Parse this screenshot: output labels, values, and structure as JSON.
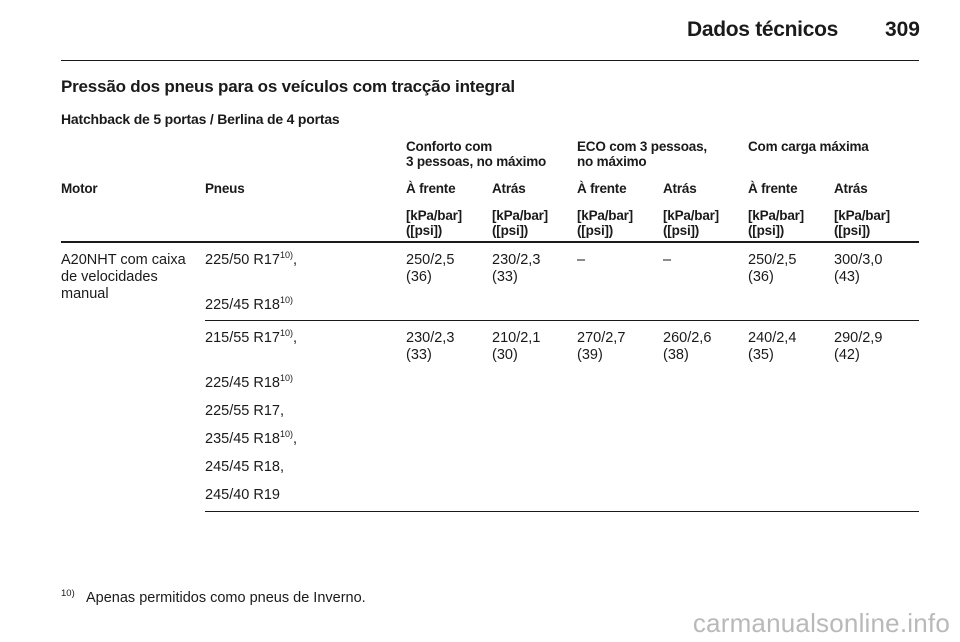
{
  "header": {
    "title": "Dados técnicos",
    "page": "309"
  },
  "section_title": "Pressão dos pneus para os veículos com tracção integral",
  "subtitle": "Hatchback de 5 portas / Berlina de 4 portas",
  "table": {
    "groups": [
      {
        "line1": "Conforto com",
        "line2": "3 pessoas, no máximo"
      },
      {
        "line1": "ECO com 3 pessoas,",
        "line2": "no máximo"
      },
      {
        "line1": "Com carga máxima",
        "line2": ""
      }
    ],
    "columns": [
      "Motor",
      "Pneus",
      "À frente",
      "Atrás",
      "À frente",
      "Atrás",
      "À frente",
      "Atrás"
    ],
    "unit_line1": "[kPa/bar]",
    "unit_line2": "([psi])",
    "motor": {
      "line1": "A20NHT com caixa",
      "line2": "de velocidades",
      "line3": "manual"
    },
    "block1": {
      "tyres": [
        {
          "size": "225/50 R17",
          "note": "10)",
          "suffix": ","
        },
        {
          "size": "225/45 R18",
          "note": "10)",
          "suffix": ""
        }
      ],
      "values": [
        {
          "bar": "250/2,5",
          "psi": "(36)"
        },
        {
          "bar": "230/2,3",
          "psi": "(33)"
        },
        {
          "bar": "–",
          "psi": ""
        },
        {
          "bar": "–",
          "psi": ""
        },
        {
          "bar": "250/2,5",
          "psi": "(36)"
        },
        {
          "bar": "300/3,0",
          "psi": "(43)"
        }
      ]
    },
    "block2": {
      "tyres": [
        {
          "size": "215/55 R17",
          "note": "10)",
          "suffix": ","
        },
        {
          "size": "225/45 R18",
          "note": "10)",
          "suffix": ""
        },
        {
          "size": "225/55 R17,",
          "note": "",
          "suffix": ""
        },
        {
          "size": "235/45 R18",
          "note": "10)",
          "suffix": ","
        },
        {
          "size": "245/45 R18,",
          "note": "",
          "suffix": ""
        },
        {
          "size": "245/40 R19",
          "note": "",
          "suffix": ""
        }
      ],
      "values": [
        {
          "bar": "230/2,3",
          "psi": "(33)"
        },
        {
          "bar": "210/2,1",
          "psi": "(30)"
        },
        {
          "bar": "270/2,7",
          "psi": "(39)"
        },
        {
          "bar": "260/2,6",
          "psi": "(38)"
        },
        {
          "bar": "240/2,4",
          "psi": "(35)"
        },
        {
          "bar": "290/2,9",
          "psi": "(42)"
        }
      ]
    }
  },
  "footnote": {
    "number": "10)",
    "text": "Apenas permitidos como pneus de Inverno."
  },
  "watermark": "carmanualsonline.info"
}
